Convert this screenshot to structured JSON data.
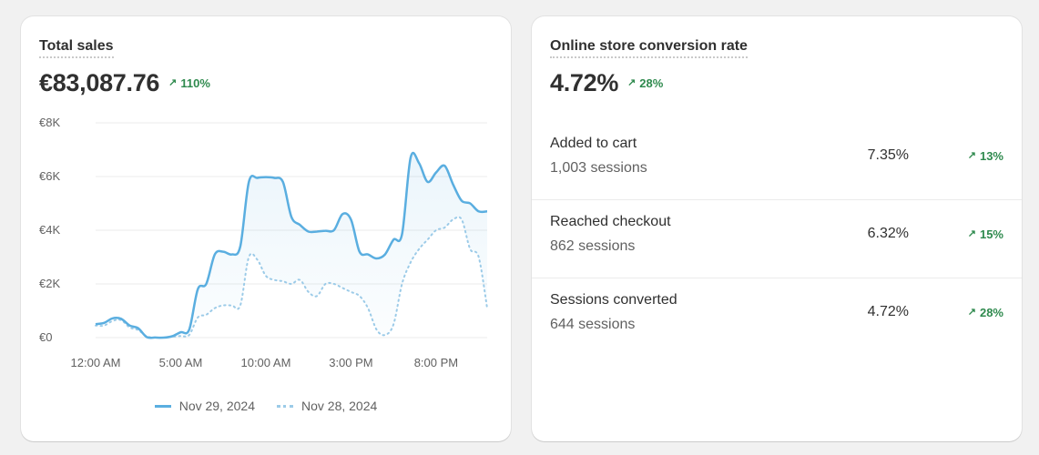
{
  "total_sales": {
    "title": "Total sales",
    "value": "€83,087.76",
    "change": "110%",
    "change_icon": "arrow-up-right-icon"
  },
  "conversion": {
    "title": "Online store conversion rate",
    "value": "4.72%",
    "change": "28%",
    "change_icon": "arrow-up-right-icon",
    "rows": [
      {
        "label": "Added to cart",
        "sessions": "1,003 sessions",
        "rate": "7.35%",
        "change": "13%"
      },
      {
        "label": "Reached checkout",
        "sessions": "862 sessions",
        "rate": "6.32%",
        "change": "15%"
      },
      {
        "label": "Sessions converted",
        "sessions": "644 sessions",
        "rate": "4.72%",
        "change": "28%"
      }
    ]
  },
  "colors": {
    "primary_line": "#5aaee0",
    "comparison_line": "#9ccbe8",
    "positive": "#2f8a4e"
  },
  "chart_data": {
    "type": "line",
    "x_tick_labels": [
      "12:00 AM",
      "5:00 AM",
      "10:00 AM",
      "3:00 PM",
      "8:00 PM"
    ],
    "y_tick_labels": [
      "€0",
      "€2K",
      "€4K",
      "€6K",
      "€8K"
    ],
    "y_ticks": [
      0,
      2000,
      4000,
      6000,
      8000
    ],
    "ylim": [
      0,
      8000
    ],
    "x": [
      0,
      0.5,
      1,
      1.5,
      2,
      2.5,
      3,
      3.5,
      4,
      4.5,
      5,
      5.5,
      6,
      6.5,
      7,
      7.5,
      8,
      8.5,
      9,
      9.5,
      10,
      10.5,
      11,
      11.5,
      12,
      12.5,
      13,
      13.5,
      14,
      14.5,
      15,
      15.5,
      16,
      16.5,
      17,
      17.5,
      18,
      18.5,
      19,
      19.5,
      20,
      20.5,
      21,
      21.5,
      22,
      22.5,
      23
    ],
    "xlim": [
      0,
      23
    ],
    "legend_position": "bottom",
    "series": [
      {
        "name": "Nov 29, 2024",
        "style": "solid",
        "values": [
          500,
          550,
          720,
          700,
          450,
          350,
          20,
          5,
          0,
          50,
          200,
          300,
          1800,
          2000,
          3100,
          3200,
          3100,
          3400,
          5800,
          5950,
          5980,
          5950,
          5800,
          4500,
          4200,
          3950,
          3950,
          3980,
          4000,
          4600,
          4400,
          3200,
          3100,
          2950,
          3100,
          3650,
          3850,
          6700,
          6500,
          5800,
          6150,
          6400,
          5700,
          5100,
          5000,
          4700,
          4700
        ]
      },
      {
        "name": "Nov 28, 2024",
        "style": "dotted",
        "values": [
          450,
          450,
          620,
          650,
          380,
          280,
          50,
          0,
          0,
          30,
          60,
          100,
          750,
          850,
          1100,
          1200,
          1200,
          1200,
          3000,
          2900,
          2300,
          2150,
          2100,
          2000,
          2150,
          1700,
          1550,
          2000,
          2000,
          1850,
          1700,
          1550,
          1100,
          300,
          100,
          500,
          2000,
          2800,
          3300,
          3650,
          4000,
          4100,
          4400,
          4400,
          3300,
          3000,
          1100
        ]
      }
    ]
  }
}
